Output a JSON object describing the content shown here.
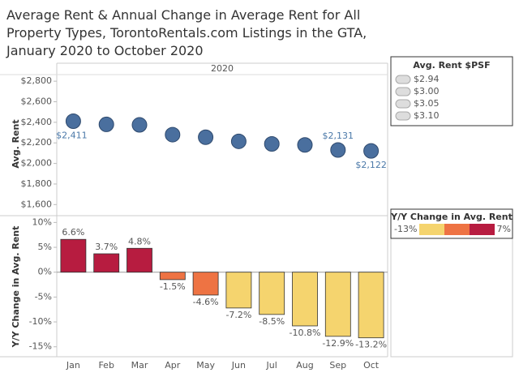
{
  "title": "Average Rent & Annual Change in Average Rent for All Property Types, TorontoRentals.com Listings in the GTA, January 2020 to October 2020",
  "chart_data": [
    {
      "type": "dot",
      "column_header": "2020",
      "y_label": "Avg. Rent",
      "categories": [
        "Jan",
        "Feb",
        "Mar",
        "Apr",
        "May",
        "Jun",
        "Jul",
        "Aug",
        "Sep",
        "Oct"
      ],
      "values": [
        2411,
        2380,
        2375,
        2280,
        2255,
        2215,
        2190,
        2180,
        2131,
        2122
      ],
      "value_labels": [
        "$2,411",
        null,
        null,
        null,
        null,
        null,
        null,
        null,
        "$2,131",
        "$2,122"
      ],
      "color": "#4a6f9e",
      "ylim": [
        1500,
        2880
      ],
      "yticks": [
        {
          "value": 1600,
          "label": "$1,600"
        },
        {
          "value": 1800,
          "label": "$1,800"
        },
        {
          "value": 2000,
          "label": "$2,000"
        },
        {
          "value": 2200,
          "label": "$2,200"
        },
        {
          "value": 2400,
          "label": "$2,400"
        },
        {
          "value": 2600,
          "label": "$2,600"
        },
        {
          "value": 2800,
          "label": "$2,800"
        }
      ],
      "size_legend": {
        "title": "Avg. Rent $PSF",
        "items": [
          {
            "value": 2.94,
            "label": "$2.94"
          },
          {
            "value": 3.0,
            "label": "$3.00"
          },
          {
            "value": 3.05,
            "label": "$3.05"
          },
          {
            "value": 3.1,
            "label": "$3.10"
          }
        ]
      }
    },
    {
      "type": "bar",
      "y_label": "Y/Y Change in Avg. Rent",
      "categories": [
        "Jan",
        "Feb",
        "Mar",
        "Apr",
        "May",
        "Jun",
        "Jul",
        "Aug",
        "Sep",
        "Oct"
      ],
      "values": [
        6.6,
        3.7,
        4.8,
        -1.5,
        -4.6,
        -7.2,
        -8.5,
        -10.8,
        -12.9,
        -13.2
      ],
      "value_labels": [
        "6.6%",
        "3.7%",
        "4.8%",
        "-1.5%",
        "-4.6%",
        "-7.2%",
        "-8.5%",
        "-10.8%",
        "-12.9%",
        "-13.2%"
      ],
      "colors": [
        "#b71c40",
        "#b71c40",
        "#b71c40",
        "#ee7343",
        "#ee7343",
        "#f5d46e",
        "#f5d46e",
        "#f5d46e",
        "#f5d46e",
        "#f5d46e"
      ],
      "ylim": [
        -17,
        11.2
      ],
      "yticks": [
        {
          "value": -15,
          "label": "-15%"
        },
        {
          "value": -10,
          "label": "-10%"
        },
        {
          "value": -5,
          "label": "-5%"
        },
        {
          "value": 0,
          "label": "0%"
        },
        {
          "value": 5,
          "label": "5%"
        },
        {
          "value": 10,
          "label": "10%"
        }
      ],
      "color_legend": {
        "title": "Y/Y Change in Avg. Rent",
        "min": {
          "value": -13,
          "label": "-13%"
        },
        "max": {
          "value": 7,
          "label": "7%"
        },
        "colors": [
          "#f5d46e",
          "#ee7343",
          "#b71c40"
        ]
      }
    }
  ]
}
